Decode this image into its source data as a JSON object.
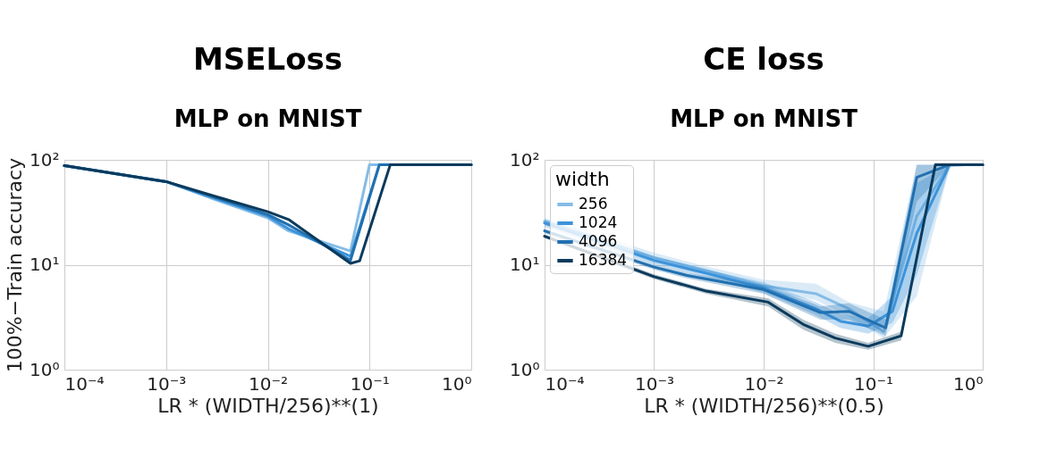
{
  "chart_data": [
    {
      "type": "line",
      "title": "MSELoss",
      "subtitle": "MLP on MNIST",
      "xlabel": "LR * (WIDTH/256)**(1)",
      "ylabel": "100%−Train accuracy",
      "log": "xy",
      "grid": true,
      "legend": false,
      "xlim": [
        0.0001,
        1
      ],
      "ylim": [
        1,
        100
      ],
      "xticks": [
        {
          "value": 0.0001,
          "label": "10⁻⁴"
        },
        {
          "value": 0.001,
          "label": "10⁻³"
        },
        {
          "value": 0.01,
          "label": "10⁻²"
        },
        {
          "value": 0.1,
          "label": "10⁻¹"
        },
        {
          "value": 1,
          "label": "10⁰"
        }
      ],
      "yticks": [
        {
          "value": 1,
          "label": "10⁰"
        },
        {
          "value": 10,
          "label": "10¹"
        },
        {
          "value": 100,
          "label": "10²"
        }
      ],
      "series": [
        {
          "color": "#85bce6",
          "x": [
            0.0001,
            0.001,
            0.003,
            0.01,
            0.016,
            0.065,
            0.1,
            1
          ],
          "values": [
            88,
            62,
            42,
            28,
            21,
            13.5,
            90,
            90
          ]
        },
        {
          "color": "#3d93d9",
          "x": [
            0.0001,
            0.001,
            0.003,
            0.01,
            0.016,
            0.065,
            0.125,
            1
          ],
          "values": [
            88,
            62,
            43,
            29,
            22,
            12,
            90,
            90
          ]
        },
        {
          "color": "#2170b0",
          "x": [
            0.0001,
            0.001,
            0.003,
            0.01,
            0.016,
            0.065,
            0.125,
            1
          ],
          "values": [
            88,
            62,
            44,
            30,
            24,
            11,
            90,
            90
          ]
        },
        {
          "color": "#0b3a5c",
          "x": [
            0.0001,
            0.001,
            0.003,
            0.01,
            0.016,
            0.065,
            0.08,
            0.16,
            1
          ],
          "values": [
            88,
            62,
            45,
            32,
            27,
            10.3,
            10.9,
            90,
            90
          ]
        }
      ]
    },
    {
      "type": "line",
      "title": "CE loss",
      "subtitle": "MLP on MNIST",
      "xlabel": "LR * (WIDTH/256)**(0.5)",
      "log": "xy",
      "grid": true,
      "legend": "top left",
      "legend_title": "width",
      "xlim": [
        0.0001,
        1
      ],
      "ylim": [
        1,
        100
      ],
      "xticks": [
        {
          "value": 0.0001,
          "label": "10⁻⁴"
        },
        {
          "value": 0.001,
          "label": "10⁻³"
        },
        {
          "value": 0.01,
          "label": "10⁻²"
        },
        {
          "value": 0.1,
          "label": "10⁻¹"
        },
        {
          "value": 1,
          "label": "10⁰"
        }
      ],
      "yticks": [
        {
          "value": 1,
          "label": "10⁰"
        },
        {
          "value": 10,
          "label": "10¹"
        },
        {
          "value": 100,
          "label": "10²"
        }
      ],
      "series": [
        {
          "name": "256",
          "color": "#85bce6",
          "x": [
            0.0001,
            0.001,
            0.003,
            0.01,
            0.03,
            0.06,
            0.125,
            0.25,
            0.5,
            1
          ],
          "values": [
            26,
            11.7,
            8.8,
            6.3,
            5.3,
            3.8,
            2.3,
            29,
            90,
            90
          ],
          "lower": [
            24,
            10.5,
            8,
            5.6,
            4.6,
            3.2,
            2,
            5,
            85,
            90
          ],
          "upper": [
            28,
            13,
            9.6,
            7.2,
            6.6,
            4.4,
            3.6,
            90,
            90,
            90
          ]
        },
        {
          "name": "1024",
          "color": "#3d93d9",
          "x": [
            0.0001,
            0.001,
            0.003,
            0.01,
            0.03,
            0.05,
            0.09,
            0.15,
            0.25,
            0.5,
            1
          ],
          "values": [
            25,
            11,
            8.3,
            6,
            3.8,
            2.9,
            2.6,
            3.6,
            20,
            90,
            90
          ],
          "lower": [
            23,
            10,
            7.6,
            5.4,
            3.3,
            2.5,
            2.2,
            2.8,
            8,
            85,
            90
          ],
          "upper": [
            27,
            12,
            9,
            6.8,
            4.4,
            3.4,
            3.1,
            5,
            60,
            90,
            90
          ]
        },
        {
          "name": "4096",
          "color": "#2170b0",
          "x": [
            0.0001,
            0.001,
            0.002,
            0.01,
            0.033,
            0.06,
            0.13,
            0.25,
            0.5,
            1
          ],
          "values": [
            21,
            9.5,
            7.9,
            5.8,
            3.5,
            3.6,
            2.5,
            68,
            90,
            90
          ],
          "lower": [
            20,
            9,
            7.4,
            5.3,
            3,
            3,
            2.1,
            40,
            88,
            90
          ],
          "upper": [
            22,
            10,
            8.4,
            6.4,
            4,
            4.3,
            3,
            90,
            90,
            90
          ]
        },
        {
          "name": "16384",
          "color": "#0b3a5c",
          "x": [
            0.0001,
            0.001,
            0.003,
            0.011,
            0.023,
            0.045,
            0.09,
            0.18,
            0.37,
            1
          ],
          "values": [
            18.7,
            7.7,
            5.6,
            4.4,
            2.7,
            2.0,
            1.67,
            2.1,
            90,
            90
          ],
          "lower": [
            18,
            7.3,
            5.3,
            4,
            2.4,
            1.8,
            1.55,
            1.9,
            88,
            90
          ],
          "upper": [
            19.5,
            8.1,
            5.9,
            4.8,
            3,
            2.2,
            1.8,
            2.3,
            90,
            90
          ]
        }
      ]
    }
  ]
}
